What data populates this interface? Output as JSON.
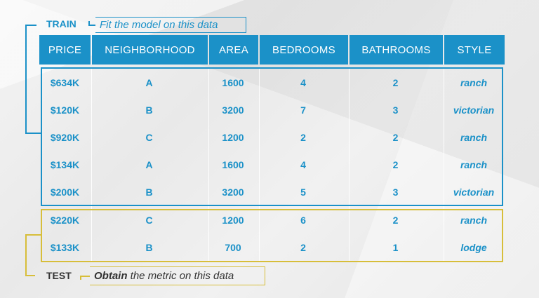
{
  "train": {
    "label": "TRAIN",
    "caption": "Fit the model on this data"
  },
  "test": {
    "label": "TEST",
    "caption_bold": "Obtain",
    "caption_rest": " the metric on this data"
  },
  "columns": [
    "PRICE",
    "NEIGHBORHOOD",
    "AREA",
    "BEDROOMS",
    "BATHROOMS",
    "STYLE"
  ],
  "rows": [
    [
      "$634K",
      "A",
      "1600",
      "4",
      "2",
      "ranch"
    ],
    [
      "$120K",
      "B",
      "3200",
      "7",
      "3",
      "victorian"
    ],
    [
      "$920K",
      "C",
      "1200",
      "2",
      "2",
      "ranch"
    ],
    [
      "$134K",
      "A",
      "1600",
      "4",
      "2",
      "ranch"
    ],
    [
      "$200K",
      "B",
      "3200",
      "5",
      "3",
      "victorian"
    ],
    [
      "$220K",
      "C",
      "1200",
      "6",
      "2",
      "ranch"
    ],
    [
      "$133K",
      "B",
      "700",
      "2",
      "1",
      "lodge"
    ]
  ],
  "colors": {
    "train": "#1b91c8",
    "test": "#d7be3a",
    "text_dark": "#333333"
  }
}
